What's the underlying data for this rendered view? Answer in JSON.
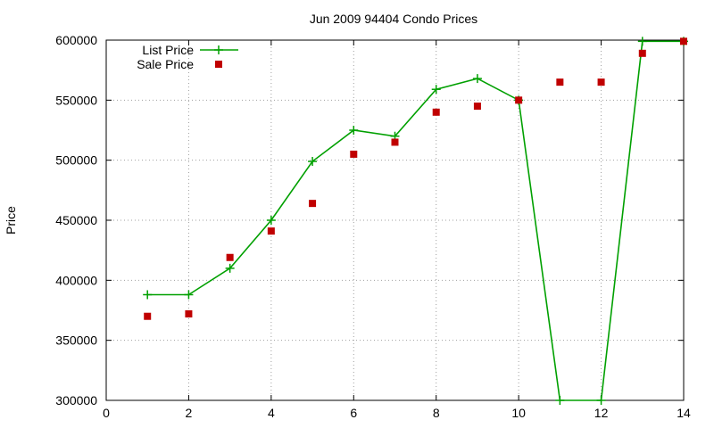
{
  "chart_data": {
    "type": "line",
    "title": "Jun 2009 94404 Condo Prices",
    "xlabel": "",
    "ylabel": "Price",
    "xlim": [
      0,
      14
    ],
    "ylim": [
      300000,
      600000
    ],
    "x_ticks": [
      0,
      2,
      4,
      6,
      8,
      10,
      12,
      14
    ],
    "y_ticks": [
      300000,
      350000,
      400000,
      450000,
      500000,
      550000,
      600000
    ],
    "grid": true,
    "legend_position": "top-left",
    "series": [
      {
        "name": "List Price",
        "kind": "linespoints",
        "marker": "plus",
        "color": "#00a000",
        "x": [
          1,
          2,
          3,
          4,
          5,
          6,
          7,
          8,
          9,
          10,
          11,
          12,
          13,
          14
        ],
        "values": [
          388000,
          388000,
          410000,
          450000,
          499000,
          525000,
          520000,
          559000,
          568000,
          550000,
          300000,
          300000,
          599000,
          599000
        ]
      },
      {
        "name": "Sale Price",
        "kind": "points",
        "marker": "square",
        "color": "#c00000",
        "x": [
          1,
          2,
          3,
          4,
          5,
          6,
          7,
          8,
          9,
          10,
          11,
          12,
          13,
          14
        ],
        "values": [
          370000,
          372000,
          419000,
          441000,
          464000,
          505000,
          515000,
          540000,
          545000,
          550000,
          565000,
          565000,
          589000,
          599000
        ]
      }
    ]
  }
}
